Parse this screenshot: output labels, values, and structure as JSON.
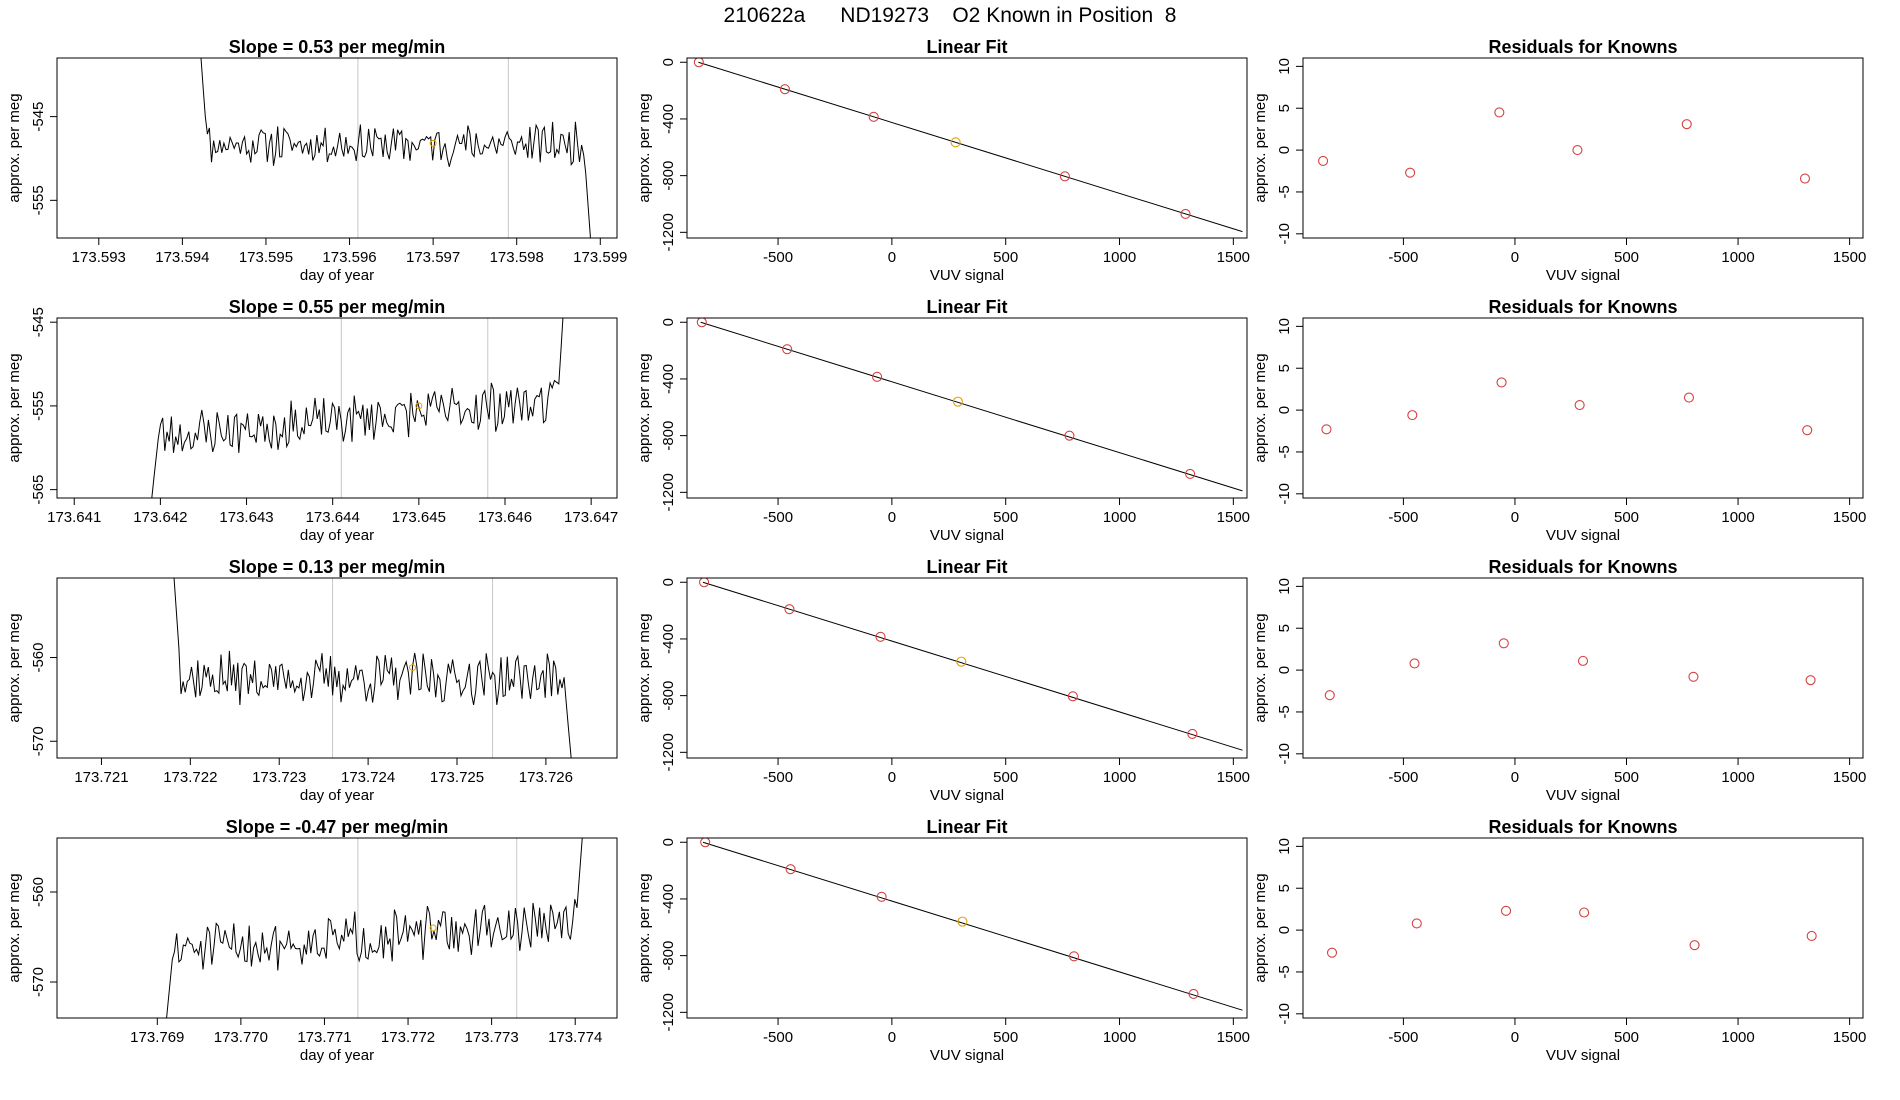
{
  "page": {
    "title": "210622a      ND19273    O2 Known in Position  8"
  },
  "chart_data": [
    {
      "type": "line",
      "panel": "trace",
      "title": "Slope =  0.53  per meg/min",
      "xlabel": "day of year",
      "ylabel": "approx. per meg",
      "xlim": [
        173.5925,
        173.5992
      ],
      "ylim": [
        -559.5,
        -538
      ],
      "xticks": [
        173.593,
        173.594,
        173.595,
        173.596,
        173.597,
        173.598,
        173.599
      ],
      "xtick_labels": [
        "173.593",
        "173.594",
        "173.595",
        "173.596",
        "173.597",
        "173.598",
        "173.599"
      ],
      "yticks": [
        -545,
        -555
      ],
      "ytick_labels": [
        "-545",
        "-555"
      ],
      "vlines": [
        173.5961,
        173.5979
      ],
      "trace": {
        "x0": 173.5942,
        "x1": 173.5989,
        "level": -548.3,
        "noise": 2.0,
        "start": -535,
        "end": -562,
        "seed": 11
      },
      "marker": {
        "x": 173.597,
        "y": -548.2,
        "color": "#e69f00"
      }
    },
    {
      "type": "scatter",
      "panel": "fit",
      "title": "Linear Fit",
      "xlabel": "VUV signal",
      "ylabel": "approx. per meg",
      "xlim": [
        -900,
        1560
      ],
      "ylim": [
        -1240,
        30
      ],
      "xticks": [
        -500,
        0,
        500,
        1000,
        1500
      ],
      "xtick_labels": [
        "-500",
        "0",
        "500",
        "1000",
        "1500"
      ],
      "yticks": [
        0,
        -400,
        -800,
        -1200
      ],
      "ytick_labels": [
        "0",
        "-400",
        "-800",
        "-1200"
      ],
      "line": {
        "x0": -850,
        "y0": 0,
        "x1": 1540,
        "y1": -1195
      },
      "points": [
        {
          "x": -848,
          "y": 0
        },
        {
          "x": -470,
          "y": -190
        },
        {
          "x": -80,
          "y": -385
        },
        {
          "x": 280,
          "y": -565,
          "color": "#e69f00"
        },
        {
          "x": 760,
          "y": -805
        },
        {
          "x": 1290,
          "y": -1070
        }
      ]
    },
    {
      "type": "scatter",
      "panel": "resid",
      "title": "Residuals for Knowns",
      "xlabel": "VUV signal",
      "ylabel": "approx. per meg",
      "xlim": [
        -950,
        1560
      ],
      "ylim": [
        -10.5,
        11
      ],
      "xticks": [
        -500,
        0,
        500,
        1000,
        1500
      ],
      "xtick_labels": [
        "-500",
        "0",
        "500",
        "1000",
        "1500"
      ],
      "yticks": [
        10,
        5,
        0,
        -5,
        -10
      ],
      "ytick_labels": [
        "10",
        "5",
        "0",
        "-5",
        "-10"
      ],
      "points": [
        {
          "x": -860,
          "y": -1.3
        },
        {
          "x": -470,
          "y": -2.7
        },
        {
          "x": -70,
          "y": 4.5
        },
        {
          "x": 280,
          "y": 0.0
        },
        {
          "x": 770,
          "y": 3.1
        },
        {
          "x": 1300,
          "y": -3.4
        }
      ]
    },
    {
      "type": "line",
      "panel": "trace",
      "title": "Slope =  0.55  per meg/min",
      "xlabel": "day of year",
      "ylabel": "approx. per meg",
      "xlim": [
        173.6408,
        173.6473
      ],
      "ylim": [
        -566,
        -544.5
      ],
      "xticks": [
        173.641,
        173.642,
        173.643,
        173.644,
        173.645,
        173.646,
        173.647
      ],
      "xtick_labels": [
        "173.641",
        "173.642",
        "173.643",
        "173.644",
        "173.645",
        "173.646",
        "173.647"
      ],
      "yticks": [
        -545,
        -555,
        -565
      ],
      "ytick_labels": [
        "-545",
        "-555",
        "-565"
      ],
      "vlines": [
        173.6441,
        173.6458
      ],
      "trace": {
        "x0": 173.6419,
        "x1": 173.6467,
        "level": -556.5,
        "trend": 4.5,
        "noise": 2.4,
        "start": -566,
        "end": -540,
        "seed": 23
      },
      "marker": {
        "x": 173.645,
        "y": -555.0,
        "color": "#e69f00"
      }
    },
    {
      "type": "scatter",
      "panel": "fit",
      "title": "Linear Fit",
      "xlabel": "VUV signal",
      "ylabel": "approx. per meg",
      "xlim": [
        -900,
        1560
      ],
      "ylim": [
        -1240,
        30
      ],
      "xticks": [
        -500,
        0,
        500,
        1000,
        1500
      ],
      "xtick_labels": [
        "-500",
        "0",
        "500",
        "1000",
        "1500"
      ],
      "yticks": [
        0,
        -400,
        -800,
        -1200
      ],
      "ytick_labels": [
        "0",
        "-400",
        "-800",
        "-1200"
      ],
      "line": {
        "x0": -840,
        "y0": 0,
        "x1": 1540,
        "y1": -1190
      },
      "points": [
        {
          "x": -835,
          "y": 0
        },
        {
          "x": -460,
          "y": -190
        },
        {
          "x": -65,
          "y": -385
        },
        {
          "x": 290,
          "y": -560,
          "color": "#e69f00"
        },
        {
          "x": 780,
          "y": -800
        },
        {
          "x": 1310,
          "y": -1070
        }
      ]
    },
    {
      "type": "scatter",
      "panel": "resid",
      "title": "Residuals for Knowns",
      "xlabel": "VUV signal",
      "ylabel": "approx. per meg",
      "xlim": [
        -950,
        1560
      ],
      "ylim": [
        -10.5,
        11
      ],
      "xticks": [
        -500,
        0,
        500,
        1000,
        1500
      ],
      "xtick_labels": [
        "-500",
        "0",
        "500",
        "1000",
        "1500"
      ],
      "yticks": [
        10,
        5,
        0,
        -5,
        -10
      ],
      "ytick_labels": [
        "10",
        "5",
        "0",
        "-5",
        "-10"
      ],
      "points": [
        {
          "x": -845,
          "y": -2.3
        },
        {
          "x": -460,
          "y": -0.6
        },
        {
          "x": -60,
          "y": 3.3
        },
        {
          "x": 290,
          "y": 0.6
        },
        {
          "x": 780,
          "y": 1.5
        },
        {
          "x": 1310,
          "y": -2.4
        }
      ]
    },
    {
      "type": "line",
      "panel": "trace",
      "title": "Slope =  0.13  per meg/min",
      "xlabel": "day of year",
      "ylabel": "approx. per meg",
      "xlim": [
        173.7205,
        173.7268
      ],
      "ylim": [
        -572,
        -550.5
      ],
      "xticks": [
        173.721,
        173.722,
        173.723,
        173.724,
        173.725,
        173.726
      ],
      "xtick_labels": [
        "173.721",
        "173.722",
        "173.723",
        "173.724",
        "173.725",
        "173.726"
      ],
      "yticks": [
        -560,
        -570
      ],
      "ytick_labels": [
        "-560",
        "-570"
      ],
      "vlines": [
        173.7236,
        173.7254
      ],
      "trace": {
        "x0": 173.7218,
        "x1": 173.7263,
        "level": -562.5,
        "noise": 2.5,
        "start": -548,
        "end": -574,
        "seed": 37
      },
      "marker": {
        "x": 173.7245,
        "y": -561.2,
        "color": "#e69f00"
      }
    },
    {
      "type": "scatter",
      "panel": "fit",
      "title": "Linear Fit",
      "xlabel": "VUV signal",
      "ylabel": "approx. per meg",
      "xlim": [
        -900,
        1560
      ],
      "ylim": [
        -1240,
        30
      ],
      "xticks": [
        -500,
        0,
        500,
        1000,
        1500
      ],
      "xtick_labels": [
        "-500",
        "0",
        "500",
        "1000",
        "1500"
      ],
      "yticks": [
        0,
        -400,
        -800,
        -1200
      ],
      "ytick_labels": [
        "0",
        "-400",
        "-800",
        "-1200"
      ],
      "line": {
        "x0": -830,
        "y0": 0,
        "x1": 1540,
        "y1": -1185
      },
      "points": [
        {
          "x": -825,
          "y": 0
        },
        {
          "x": -450,
          "y": -190
        },
        {
          "x": -50,
          "y": -385
        },
        {
          "x": 305,
          "y": -560,
          "color": "#e69f00"
        },
        {
          "x": 795,
          "y": -805
        },
        {
          "x": 1320,
          "y": -1070
        }
      ]
    },
    {
      "type": "scatter",
      "panel": "resid",
      "title": "Residuals for Knowns",
      "xlabel": "VUV signal",
      "ylabel": "approx. per meg",
      "xlim": [
        -950,
        1560
      ],
      "ylim": [
        -10.5,
        11
      ],
      "xticks": [
        -500,
        0,
        500,
        1000,
        1500
      ],
      "xtick_labels": [
        "-500",
        "0",
        "500",
        "1000",
        "1500"
      ],
      "yticks": [
        10,
        5,
        0,
        -5,
        -10
      ],
      "ytick_labels": [
        "10",
        "5",
        "0",
        "-5",
        "-10"
      ],
      "points": [
        {
          "x": -830,
          "y": -3.0
        },
        {
          "x": -450,
          "y": 0.8
        },
        {
          "x": -50,
          "y": 3.2
        },
        {
          "x": 305,
          "y": 1.1
        },
        {
          "x": 800,
          "y": -0.8
        },
        {
          "x": 1325,
          "y": -1.2
        }
      ]
    },
    {
      "type": "line",
      "panel": "trace",
      "title": "Slope =  -0.47  per meg/min",
      "xlabel": "day of year",
      "ylabel": "approx. per meg",
      "xlim": [
        173.7678,
        173.7745
      ],
      "ylim": [
        -574,
        -554
      ],
      "xticks": [
        173.769,
        173.77,
        173.771,
        173.772,
        173.773,
        173.774
      ],
      "xtick_labels": [
        "173.769",
        "173.770",
        "173.771",
        "173.772",
        "173.773",
        "173.774"
      ],
      "yticks": [
        -560,
        -570
      ],
      "ytick_labels": [
        "-560",
        "-570"
      ],
      "vlines": [
        173.7714,
        173.7733
      ],
      "trace": {
        "x0": 173.7691,
        "x1": 173.7741,
        "level": -565,
        "trend": 3.0,
        "noise": 2.3,
        "start": -575,
        "end": -552,
        "seed": 51
      },
      "marker": {
        "x": 173.7723,
        "y": -564.0,
        "color": "#e69f00"
      }
    },
    {
      "type": "scatter",
      "panel": "fit",
      "title": "Linear Fit",
      "xlabel": "VUV signal",
      "ylabel": "approx. per meg",
      "xlim": [
        -900,
        1560
      ],
      "ylim": [
        -1240,
        30
      ],
      "xticks": [
        -500,
        0,
        500,
        1000,
        1500
      ],
      "xtick_labels": [
        "-500",
        "0",
        "500",
        "1000",
        "1500"
      ],
      "yticks": [
        0,
        -400,
        -800,
        -1200
      ],
      "ytick_labels": [
        "0",
        "-400",
        "-800",
        "-1200"
      ],
      "line": {
        "x0": -830,
        "y0": 0,
        "x1": 1540,
        "y1": -1185
      },
      "points": [
        {
          "x": -820,
          "y": 0
        },
        {
          "x": -445,
          "y": -190
        },
        {
          "x": -45,
          "y": -385
        },
        {
          "x": 310,
          "y": -560,
          "color": "#e69f00"
        },
        {
          "x": 800,
          "y": -805
        },
        {
          "x": 1325,
          "y": -1070
        }
      ]
    },
    {
      "type": "scatter",
      "panel": "resid",
      "title": "Residuals for Knowns",
      "xlabel": "VUV signal",
      "ylabel": "approx. per meg",
      "xlim": [
        -950,
        1560
      ],
      "ylim": [
        -10.5,
        11
      ],
      "xticks": [
        -500,
        0,
        500,
        1000,
        1500
      ],
      "xtick_labels": [
        "-500",
        "0",
        "500",
        "1000",
        "1500"
      ],
      "yticks": [
        10,
        5,
        0,
        -5,
        -10
      ],
      "ytick_labels": [
        "10",
        "5",
        "0",
        "-5",
        "-10"
      ],
      "points": [
        {
          "x": -820,
          "y": -2.7
        },
        {
          "x": -440,
          "y": 0.8
        },
        {
          "x": -40,
          "y": 2.3
        },
        {
          "x": 310,
          "y": 2.1
        },
        {
          "x": 805,
          "y": -1.8
        },
        {
          "x": 1330,
          "y": -0.7
        }
      ]
    }
  ]
}
